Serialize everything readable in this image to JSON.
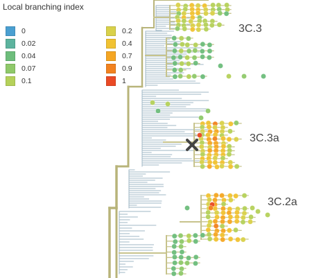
{
  "legend": {
    "title": "Local branching index",
    "items": [
      {
        "label": "0",
        "color": "#4a9fd1"
      },
      {
        "label": "0.02",
        "color": "#5cb39e"
      },
      {
        "label": "0.04",
        "color": "#6dbd7b"
      },
      {
        "label": "0.07",
        "color": "#8fc96a"
      },
      {
        "label": "0.1",
        "color": "#b5d15a"
      },
      {
        "label": "0.2",
        "color": "#d9d14a"
      },
      {
        "label": "0.4",
        "color": "#f1c232"
      },
      {
        "label": "0.7",
        "color": "#f5a623"
      },
      {
        "label": "0.9",
        "color": "#f2821f"
      },
      {
        "label": "1",
        "color": "#ea4a25"
      }
    ]
  },
  "clades": [
    {
      "label": "3C.3"
    },
    {
      "label": "3C.3a"
    },
    {
      "label": "3C.2a"
    }
  ],
  "marker": {
    "icon": "x-mark-icon",
    "color": "#444444"
  },
  "colors": {
    "branch_low": "#9fb7c6",
    "branch_mid": "#c7c38c",
    "branch_trunk": "#b8b47a"
  }
}
